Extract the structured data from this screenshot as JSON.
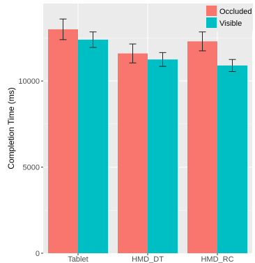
{
  "chart_data": {
    "type": "bar",
    "title": "",
    "xlabel": "",
    "ylabel": "Completion Time (ms)",
    "categories": [
      "Tablet",
      "HMD_DT",
      "HMD_RC"
    ],
    "series": [
      {
        "name": "Occluded",
        "color": "#F8766D",
        "values": [
          13000,
          11600,
          12300
        ],
        "errors": [
          600,
          550,
          550
        ]
      },
      {
        "name": "Visible",
        "color": "#00BFC4",
        "values": [
          12400,
          11250,
          10900
        ],
        "errors": [
          450,
          400,
          350
        ]
      }
    ],
    "ylim": [
      0,
      14500
    ],
    "yticks": [
      0,
      5000,
      10000
    ],
    "grid": true,
    "legend_position": "top-right",
    "panel_background": "#EBEBEB",
    "grid_color": "#FFFFFF"
  }
}
